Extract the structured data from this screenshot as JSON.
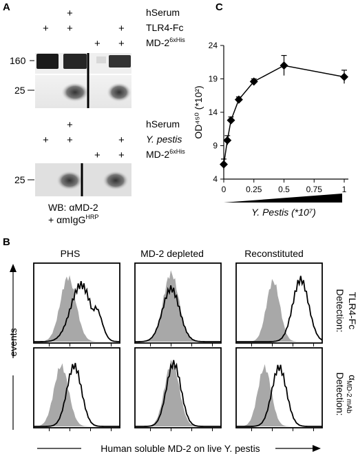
{
  "panels": {
    "a": "A",
    "b": "B",
    "c": "C"
  },
  "panel_a": {
    "row_labels_top": [
      "hSerum",
      "TLR4-Fc",
      "MD-2"
    ],
    "md2_superscript": "6xHis",
    "mw_top": [
      "160",
      "25"
    ],
    "row_labels_bottom": [
      "hSerum",
      "Y. pestis",
      "MD-2"
    ],
    "mw_bottom": [
      "25"
    ],
    "caption_line1": "WB: αMD-2",
    "caption_line2": "+ αmIgG",
    "caption_superscript": "HRP",
    "plus": "+"
  },
  "panel_b": {
    "columns": [
      "PHS",
      "MD-2 depleted",
      "Reconstituted"
    ],
    "y_label": "events",
    "x_label": "Human soluble MD-2 on live Y. pestis",
    "row_labels": [
      {
        "line1": "Detection:",
        "line2": "TLR4-Fc"
      },
      {
        "line1": "Detection:",
        "line2": "MD-2 mAb",
        "prefix": "α"
      }
    ]
  },
  "chart_data": {
    "type": "line",
    "title": "",
    "xlabel": "Y. Pestis (*10⁷)",
    "ylabel": "OD⁴⁵⁰ (*10²)",
    "x": [
      0,
      0.03,
      0.06,
      0.125,
      0.25,
      0.5,
      1.0
    ],
    "y": [
      6.2,
      9.8,
      12.8,
      15.9,
      18.6,
      21.0,
      19.3
    ],
    "err": [
      0.8,
      0.7,
      0.5,
      0.4,
      0.4,
      1.5,
      1.0
    ],
    "xlim": [
      0,
      1
    ],
    "ylim": [
      4,
      24
    ],
    "xticks": [
      "0",
      "0.25",
      "0.5",
      "0.75",
      "1"
    ],
    "yticks": [
      "4",
      "9",
      "14",
      "19",
      "24"
    ],
    "marker": "diamond",
    "grid": false
  }
}
